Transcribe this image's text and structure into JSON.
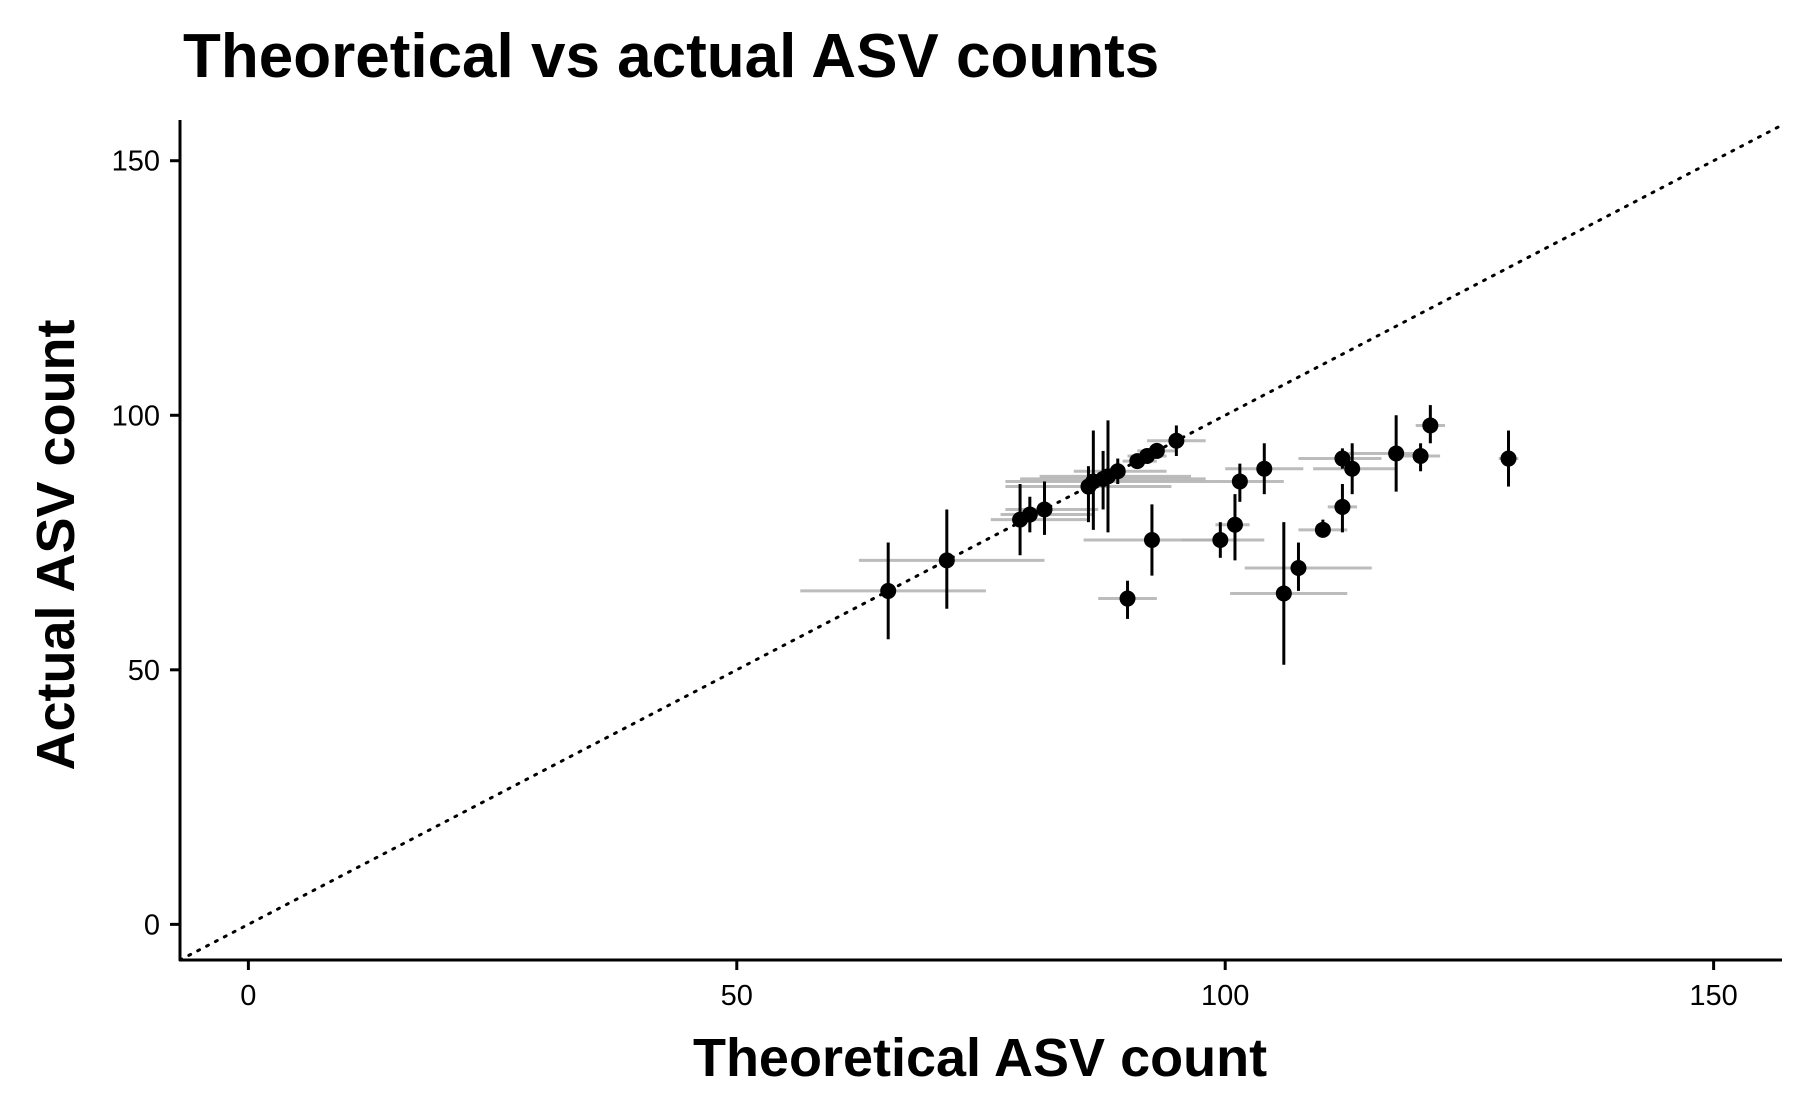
{
  "chart_data": {
    "type": "scatter",
    "title": "Theoretical vs actual ASV counts",
    "xlabel": "Theoretical ASV count",
    "ylabel": "Actual ASV count",
    "xlim": [
      -7,
      157
    ],
    "ylim": [
      -7,
      158
    ],
    "xticks": [
      0,
      50,
      100,
      150
    ],
    "yticks": [
      0,
      50,
      100,
      150
    ],
    "grid": false,
    "legend": "none",
    "reference_line": {
      "type": "identity",
      "style": "dotted",
      "slope": 1,
      "intercept": 0
    },
    "colors": {
      "point": "#000000",
      "vertical_error": "#000000",
      "horizontal_error": "#b0b0b0"
    },
    "points": [
      {
        "x": 65.5,
        "y": 65.5,
        "xmin": 56.5,
        "xmax": 75.5,
        "ymin": 56,
        "ymax": 75
      },
      {
        "x": 71.5,
        "y": 71.5,
        "xmin": 62.5,
        "xmax": 81.5,
        "ymin": 62,
        "ymax": 81.5
      },
      {
        "x": 79.0,
        "y": 79.5,
        "xmin": 76.0,
        "xmax": 86.0,
        "ymin": 72.5,
        "ymax": 86.5
      },
      {
        "x": 80.0,
        "y": 80.5,
        "xmin": 77.0,
        "xmax": 86.5,
        "ymin": 77,
        "ymax": 84
      },
      {
        "x": 81.5,
        "y": 81.5,
        "xmin": 77.5,
        "xmax": 87.0,
        "ymin": 76.5,
        "ymax": 87
      },
      {
        "x": 86.0,
        "y": 86.0,
        "xmin": 77.5,
        "xmax": 94.5,
        "ymin": 79,
        "ymax": 90
      },
      {
        "x": 86.5,
        "y": 87.0,
        "xmin": 77.5,
        "xmax": 98.5,
        "ymin": 77.5,
        "ymax": 97
      },
      {
        "x": 87.5,
        "y": 87.5,
        "xmin": 79.0,
        "xmax": 98.0,
        "ymin": 81.5,
        "ymax": 93
      },
      {
        "x": 88.0,
        "y": 88.0,
        "xmin": 81.0,
        "xmax": 96.5,
        "ymin": 77,
        "ymax": 99
      },
      {
        "x": 89.0,
        "y": 89.0,
        "xmin": 84.5,
        "xmax": 94.0,
        "ymin": 86.5,
        "ymax": 91.5
      },
      {
        "x": 90.0,
        "y": 64.0,
        "xmin": 87.0,
        "xmax": 93.0,
        "ymin": 60,
        "ymax": 67.5
      },
      {
        "x": 91.0,
        "y": 91.0,
        "xmin": 89.5,
        "xmax": 93.0,
        "ymin": 89.5,
        "ymax": 92.5
      },
      {
        "x": 92.0,
        "y": 92.0,
        "xmin": 90.0,
        "xmax": 94.0,
        "ymin": 90.5,
        "ymax": 93.5
      },
      {
        "x": 92.5,
        "y": 75.5,
        "xmin": 85.5,
        "xmax": 100.0,
        "ymin": 68.5,
        "ymax": 82.5
      },
      {
        "x": 93.0,
        "y": 93.0,
        "xmin": 91.0,
        "xmax": 95.0,
        "ymin": 91.5,
        "ymax": 94.5
      },
      {
        "x": 95.0,
        "y": 95.0,
        "xmin": 92.0,
        "xmax": 98.0,
        "ymin": 92,
        "ymax": 98
      },
      {
        "x": 99.5,
        "y": 75.5,
        "xmin": 95.5,
        "xmax": 104.0,
        "ymin": 72,
        "ymax": 79
      },
      {
        "x": 101.0,
        "y": 78.5,
        "xmin": 99.0,
        "xmax": 102.5,
        "ymin": 71.5,
        "ymax": 84.5
      },
      {
        "x": 101.5,
        "y": 87.0,
        "xmin": 98.5,
        "xmax": 106.0,
        "ymin": 83,
        "ymax": 90.5
      },
      {
        "x": 104.0,
        "y": 89.5,
        "xmin": 100.0,
        "xmax": 108.0,
        "ymin": 84.5,
        "ymax": 94.5
      },
      {
        "x": 106.0,
        "y": 65.0,
        "xmin": 100.5,
        "xmax": 112.5,
        "ymin": 51,
        "ymax": 79
      },
      {
        "x": 107.5,
        "y": 70.0,
        "xmin": 102.0,
        "xmax": 115.0,
        "ymin": 65.5,
        "ymax": 75
      },
      {
        "x": 110.0,
        "y": 77.5,
        "xmin": 107.5,
        "xmax": 112.5,
        "ymin": 76,
        "ymax": 79.5
      },
      {
        "x": 112.0,
        "y": 82.0,
        "xmin": 110.5,
        "xmax": 113.5,
        "ymin": 77,
        "ymax": 86.5
      },
      {
        "x": 112.0,
        "y": 91.5,
        "xmin": 107.5,
        "xmax": 116.0,
        "ymin": 89.5,
        "ymax": 93.5
      },
      {
        "x": 113.0,
        "y": 89.5,
        "xmin": 109.0,
        "xmax": 117.5,
        "ymin": 84.5,
        "ymax": 94.5
      },
      {
        "x": 117.5,
        "y": 92.5,
        "xmin": 112.0,
        "xmax": 120.5,
        "ymin": 85,
        "ymax": 100
      },
      {
        "x": 120.0,
        "y": 92.0,
        "xmin": 117.5,
        "xmax": 122.0,
        "ymin": 89,
        "ymax": 94.5
      },
      {
        "x": 121.0,
        "y": 98.0,
        "xmin": 119.5,
        "xmax": 122.5,
        "ymin": 94.5,
        "ymax": 102
      },
      {
        "x": 129.0,
        "y": 91.5,
        "xmin": 128.0,
        "xmax": 130.0,
        "ymin": 86,
        "ymax": 97
      }
    ]
  }
}
